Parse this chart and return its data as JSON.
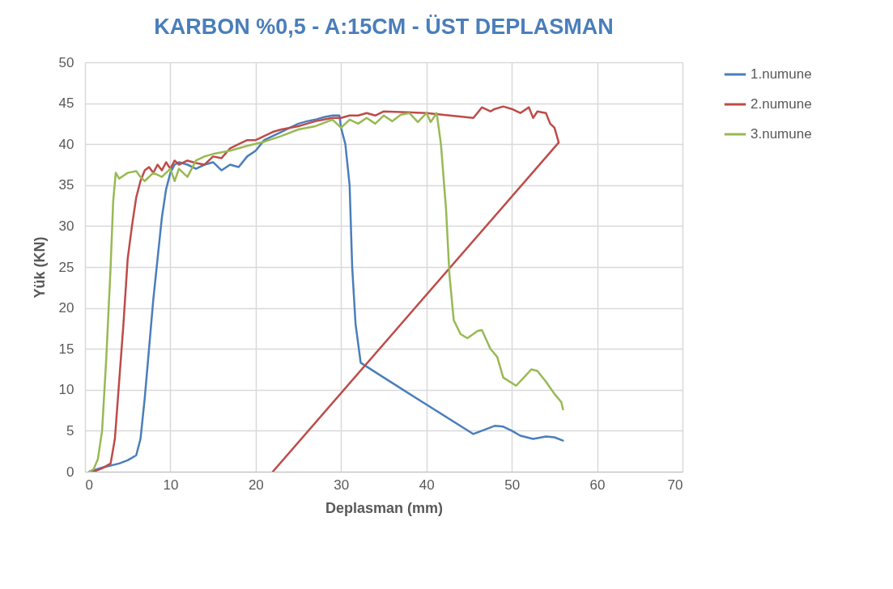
{
  "chart_data": {
    "type": "line",
    "title": "KARBON %0,5 - A:15CM - ÜST DEPLASMAN",
    "xlabel": "Deplasman (mm)",
    "ylabel": "Yük (KN)",
    "xlim": [
      0,
      70
    ],
    "xticks": [
      0,
      10,
      20,
      30,
      40,
      50,
      60,
      70
    ],
    "ylim": [
      0,
      50
    ],
    "yticks": [
      0,
      5,
      10,
      15,
      20,
      25,
      30,
      35,
      40,
      45,
      50
    ],
    "grid": true,
    "legend": "right",
    "marker": "none",
    "line_style": "solid",
    "series": [
      {
        "name": "1.numune",
        "color": "#4a7ebb",
        "x": [
          0.5,
          2,
          4,
          5,
          6,
          6.5,
          7,
          7.5,
          8,
          8.5,
          9,
          9.5,
          10,
          10.5,
          11,
          12,
          13,
          14,
          15,
          16,
          17,
          18,
          19,
          20,
          21,
          22,
          23,
          24,
          25,
          26,
          27,
          28,
          29,
          29.8,
          30,
          30.5,
          31,
          31.3,
          31.7,
          32.3,
          35,
          40,
          45.5,
          47,
          48,
          49,
          50,
          51,
          52.5,
          54,
          55,
          56
        ],
        "values": [
          0,
          0.5,
          1,
          1.4,
          2,
          4,
          9,
          15,
          21,
          26,
          31,
          34.5,
          36.5,
          37.5,
          37.8,
          37.5,
          37,
          37.5,
          37.8,
          36.8,
          37.5,
          37.2,
          38.5,
          39.2,
          40.5,
          41,
          41.5,
          42,
          42.5,
          42.8,
          43,
          43.3,
          43.5,
          43.5,
          42,
          40,
          35,
          25,
          18,
          13.3,
          11.5,
          8.2,
          4.6,
          5.2,
          5.6,
          5.5,
          5,
          4.4,
          4,
          4.3,
          4.2,
          3.8
        ]
      },
      {
        "name": "2.numune",
        "color": "#be4b48",
        "x": [
          1,
          2,
          3,
          3.5,
          4,
          4.5,
          5,
          5.5,
          6,
          6.5,
          7,
          7.5,
          8,
          8.5,
          9,
          9.5,
          10,
          10.5,
          11,
          12,
          13,
          14,
          15,
          16,
          17,
          18,
          19,
          20,
          21,
          22,
          23,
          24,
          25,
          26,
          27,
          28,
          29,
          30,
          31,
          32,
          33,
          34,
          35,
          40,
          45.5,
          46.5,
          47.5,
          48,
          49,
          50,
          51,
          52,
          52.5,
          53,
          54,
          54.5,
          55,
          55.5,
          22
        ],
        "values": [
          0,
          0.4,
          1,
          4,
          11,
          18,
          26,
          30,
          33.5,
          35.5,
          36.8,
          37.2,
          36.5,
          37.5,
          36.8,
          37.8,
          37,
          38,
          37.5,
          38,
          37.7,
          37.5,
          38.5,
          38.3,
          39.5,
          40,
          40.5,
          40.5,
          41,
          41.5,
          41.8,
          42,
          42.2,
          42.5,
          42.8,
          43,
          43.2,
          43.2,
          43.5,
          43.5,
          43.8,
          43.5,
          44,
          43.8,
          43.2,
          44.5,
          44,
          44.3,
          44.6,
          44.3,
          43.8,
          44.5,
          43.2,
          44,
          43.8,
          42.5,
          42,
          40.2,
          0
        ]
      },
      {
        "name": "3.numune",
        "color": "#98b954",
        "x": [
          0.5,
          1,
          1.5,
          2,
          2.5,
          3,
          3.3,
          3.6,
          4,
          5,
          6,
          6.5,
          7,
          8,
          9,
          10,
          10.5,
          11,
          12,
          13,
          14,
          15,
          17,
          19,
          21,
          23,
          25,
          27,
          29,
          30,
          31,
          32,
          33,
          34,
          35,
          36,
          37,
          38,
          39,
          40,
          40.5,
          41.2,
          41.7,
          42.3,
          42.7,
          43.2,
          44,
          44.8,
          46,
          46.5,
          47.5,
          48.3,
          49,
          50.5,
          51.5,
          52.3,
          53,
          54,
          55,
          55.8,
          56
        ],
        "values": [
          0,
          0.3,
          1.5,
          5,
          14,
          25,
          33,
          36.5,
          35.8,
          36.5,
          36.7,
          36,
          35.5,
          36.5,
          36,
          37,
          35.5,
          37,
          36,
          38,
          38.5,
          38.8,
          39.2,
          39.8,
          40.3,
          41,
          41.8,
          42.2,
          43,
          42,
          43,
          42.5,
          43.2,
          42.5,
          43.5,
          42.8,
          43.6,
          43.8,
          42.7,
          43.8,
          42.7,
          43.8,
          40,
          32,
          24,
          18.5,
          16.8,
          16.3,
          17.2,
          17.3,
          15,
          14,
          11.5,
          10.5,
          11.6,
          12.5,
          12.3,
          11,
          9.5,
          8.5,
          7.6
        ]
      }
    ]
  }
}
